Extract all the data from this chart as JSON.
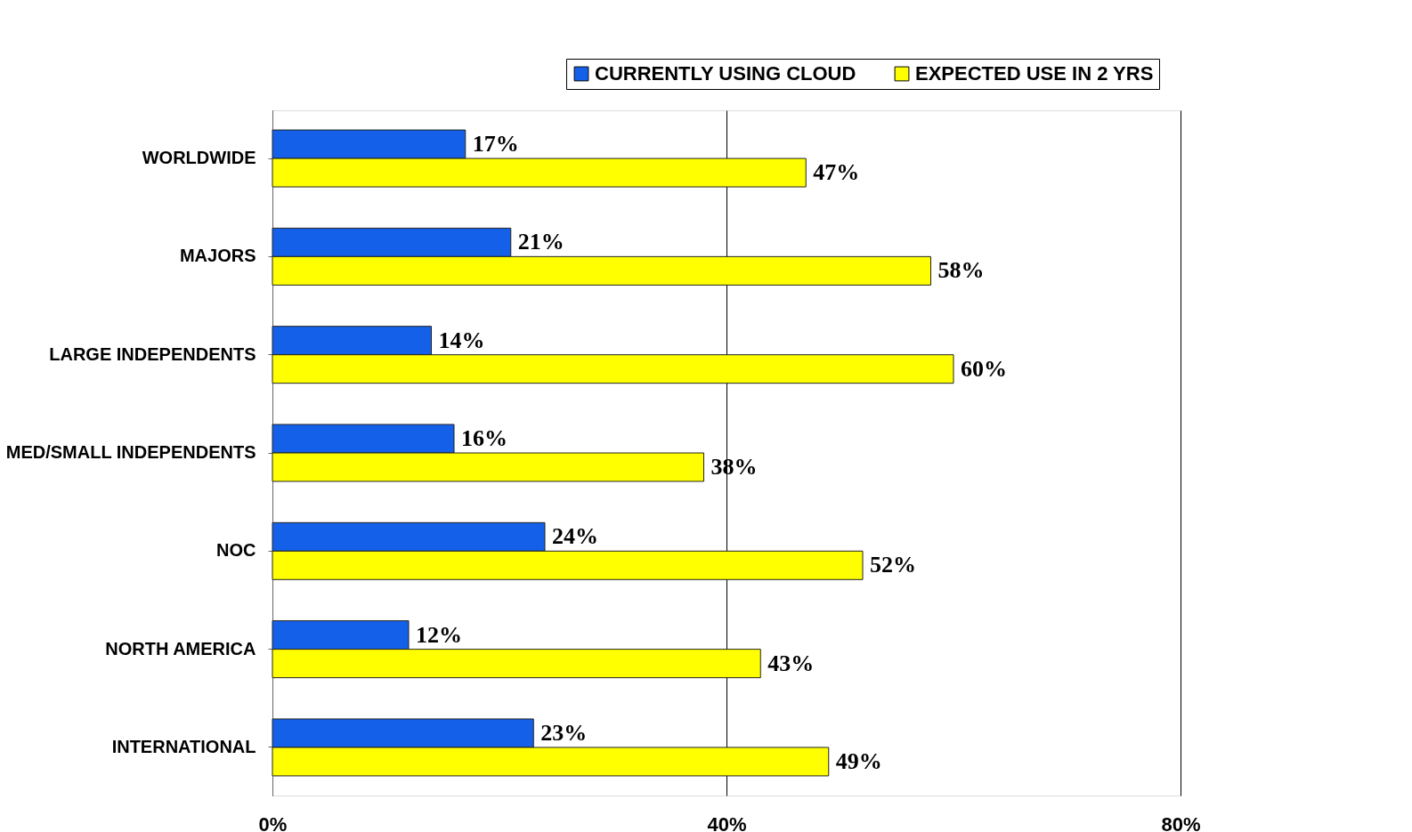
{
  "chart_data": {
    "type": "bar",
    "orientation": "horizontal",
    "categories": [
      "WORLDWIDE",
      "MAJORS",
      "LARGE INDEPENDENTS",
      "MED/SMALL INDEPENDENTS",
      "NOC",
      "NORTH AMERICA",
      "INTERNATIONAL"
    ],
    "series": [
      {
        "name": "CURRENTLY USING CLOUD",
        "color": "#1560e8",
        "values": [
          17,
          21,
          14,
          16,
          24,
          12,
          23
        ],
        "value_labels": [
          "17%",
          "21%",
          "14%",
          "16%",
          "24%",
          "12%",
          "23%"
        ]
      },
      {
        "name": "EXPECTED USE IN 2 YRS",
        "color": "#ffff00",
        "values": [
          47,
          58,
          60,
          38,
          52,
          43,
          49
        ],
        "value_labels": [
          "47%",
          "58%",
          "60%",
          "38%",
          "52%",
          "43%",
          "49%"
        ]
      }
    ],
    "xlim": [
      0,
      80
    ],
    "xticks": [
      {
        "value": 0,
        "label": "0%"
      },
      {
        "value": 40,
        "label": "40%"
      },
      {
        "value": 80,
        "label": "80%"
      }
    ],
    "grid": "x",
    "legend": "top right"
  }
}
